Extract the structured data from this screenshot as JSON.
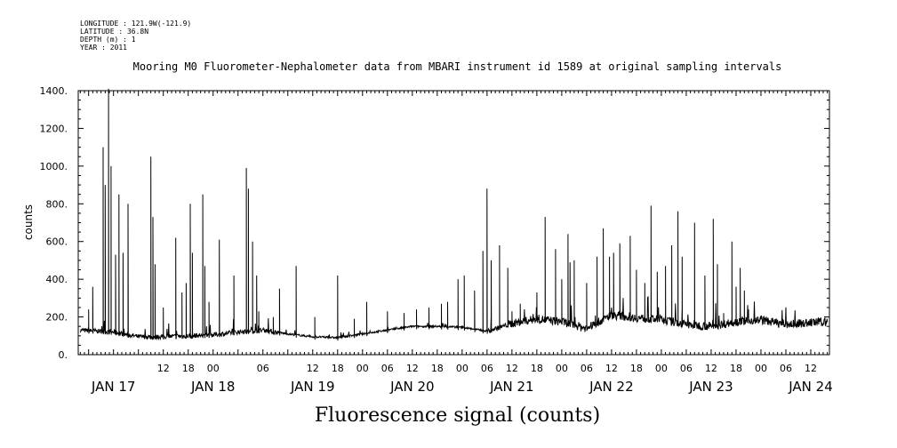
{
  "header": {
    "longitude": "LONGITUDE : 121.9W(-121.9)",
    "latitude": "LATITUDE : 36.8N",
    "depth": "DEPTH (m) : 1",
    "year": "YEAR : 2011",
    "title": "Mooring M0 Fluorometer-Nephalometer data from MBARI instrument id 1589 at original sampling intervals"
  },
  "footer": {
    "label": "Fluorescence signal (counts)"
  },
  "chart_data": {
    "type": "line",
    "title": "Mooring M0 Fluorometer-Nephalometer data from MBARI instrument id 1589 at original sampling intervals",
    "ylabel": "counts",
    "xlabel": "",
    "ylim": [
      0,
      1400
    ],
    "yticks": [
      0,
      200,
      400,
      600,
      800,
      1000,
      1200,
      1400
    ],
    "ytick_labels": [
      "0.",
      "200.",
      "400.",
      "600.",
      "800.",
      "1000.",
      "1200.",
      "1400."
    ],
    "x_unit": "hours since JAN 17 00:00",
    "xlim": [
      -8.5,
      172.5
    ],
    "hour_ticks": [
      {
        "x": 12,
        "label": "12"
      },
      {
        "x": 18,
        "label": "18"
      },
      {
        "x": 24,
        "label": "00"
      },
      {
        "x": 36,
        "label": "06"
      },
      {
        "x": 48,
        "label": "12"
      },
      {
        "x": 54,
        "label": "18"
      },
      {
        "x": 60,
        "label": "00"
      },
      {
        "x": 66,
        "label": "06"
      },
      {
        "x": 72,
        "label": "12"
      },
      {
        "x": 78,
        "label": "18"
      },
      {
        "x": 84,
        "label": "00"
      },
      {
        "x": 90,
        "label": "06"
      },
      {
        "x": 96,
        "label": "12"
      },
      {
        "x": 102,
        "label": "18"
      },
      {
        "x": 108,
        "label": "00"
      },
      {
        "x": 114,
        "label": "06"
      },
      {
        "x": 120,
        "label": "12"
      },
      {
        "x": 126,
        "label": "18"
      },
      {
        "x": 132,
        "label": "00"
      },
      {
        "x": 138,
        "label": "06"
      },
      {
        "x": 144,
        "label": "12"
      },
      {
        "x": 150,
        "label": "18"
      },
      {
        "x": 156,
        "label": "00"
      },
      {
        "x": 162,
        "label": "06"
      },
      {
        "x": 168,
        "label": "12"
      }
    ],
    "date_labels": [
      {
        "x": 0,
        "label": "JAN 17"
      },
      {
        "x": 24,
        "label": "JAN 18"
      },
      {
        "x": 48,
        "label": "JAN 19"
      },
      {
        "x": 72,
        "label": "JAN 20"
      },
      {
        "x": 96,
        "label": "JAN 21"
      },
      {
        "x": 120,
        "label": "JAN 22"
      },
      {
        "x": 144,
        "label": "JAN 23"
      },
      {
        "x": 168,
        "label": "JAN 24"
      }
    ],
    "baseline": [
      [
        -8,
        130
      ],
      [
        0,
        120
      ],
      [
        6,
        95
      ],
      [
        12,
        95
      ],
      [
        18,
        100
      ],
      [
        24,
        105
      ],
      [
        30,
        120
      ],
      [
        36,
        130
      ],
      [
        42,
        110
      ],
      [
        48,
        95
      ],
      [
        54,
        90
      ],
      [
        60,
        110
      ],
      [
        66,
        130
      ],
      [
        72,
        150
      ],
      [
        78,
        150
      ],
      [
        84,
        145
      ],
      [
        90,
        125
      ],
      [
        96,
        165
      ],
      [
        102,
        190
      ],
      [
        108,
        175
      ],
      [
        114,
        140
      ],
      [
        120,
        210
      ],
      [
        126,
        195
      ],
      [
        132,
        185
      ],
      [
        138,
        160
      ],
      [
        144,
        150
      ],
      [
        150,
        175
      ],
      [
        156,
        185
      ],
      [
        162,
        160
      ],
      [
        168,
        170
      ],
      [
        172,
        175
      ]
    ],
    "spikes": [
      [
        -6,
        240
      ],
      [
        -5,
        360
      ],
      [
        -2.5,
        1100
      ],
      [
        -2,
        900
      ],
      [
        -1.2,
        1410
      ],
      [
        -0.6,
        1000
      ],
      [
        0.5,
        530
      ],
      [
        1.3,
        850
      ],
      [
        2.3,
        540
      ],
      [
        3.5,
        800
      ],
      [
        9,
        1050
      ],
      [
        9.5,
        730
      ],
      [
        10,
        480
      ],
      [
        12,
        250
      ],
      [
        15,
        620
      ],
      [
        16.5,
        330
      ],
      [
        17.5,
        380
      ],
      [
        18.5,
        800
      ],
      [
        19,
        540
      ],
      [
        21.5,
        850
      ],
      [
        22,
        470
      ],
      [
        23,
        280
      ],
      [
        25.5,
        610
      ],
      [
        29,
        420
      ],
      [
        32,
        990
      ],
      [
        32.5,
        880
      ],
      [
        33.5,
        600
      ],
      [
        34.5,
        420
      ],
      [
        35,
        230
      ],
      [
        38.5,
        200
      ],
      [
        40,
        350
      ],
      [
        44,
        470
      ],
      [
        48.5,
        200
      ],
      [
        54,
        420
      ],
      [
        58,
        190
      ],
      [
        61,
        280
      ],
      [
        66,
        230
      ],
      [
        70,
        220
      ],
      [
        73,
        240
      ],
      [
        76,
        250
      ],
      [
        79,
        270
      ],
      [
        80.5,
        280
      ],
      [
        83,
        400
      ],
      [
        84.5,
        420
      ],
      [
        87,
        340
      ],
      [
        89,
        550
      ],
      [
        90,
        880
      ],
      [
        91,
        500
      ],
      [
        93,
        580
      ],
      [
        95,
        460
      ],
      [
        96,
        230
      ],
      [
        98,
        270
      ],
      [
        102,
        330
      ],
      [
        104,
        730
      ],
      [
        106.5,
        560
      ],
      [
        108,
        400
      ],
      [
        109.5,
        640
      ],
      [
        110,
        490
      ],
      [
        111,
        500
      ],
      [
        114,
        380
      ],
      [
        116.5,
        520
      ],
      [
        118,
        670
      ],
      [
        119.5,
        520
      ],
      [
        120.5,
        540
      ],
      [
        122,
        590
      ],
      [
        124.5,
        630
      ],
      [
        126,
        450
      ],
      [
        128,
        380
      ],
      [
        129.5,
        790
      ],
      [
        131,
        440
      ],
      [
        133,
        470
      ],
      [
        134.5,
        580
      ],
      [
        136,
        760
      ],
      [
        137,
        520
      ],
      [
        140,
        700
      ],
      [
        142.5,
        420
      ],
      [
        144.5,
        720
      ],
      [
        145.5,
        480
      ],
      [
        147,
        220
      ],
      [
        149,
        600
      ],
      [
        150,
        360
      ],
      [
        151,
        460
      ],
      [
        152,
        340
      ],
      [
        153,
        240
      ]
    ]
  }
}
